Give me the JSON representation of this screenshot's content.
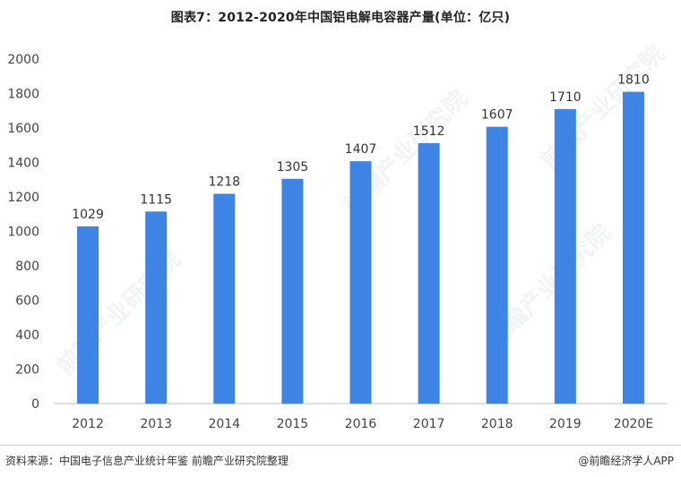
{
  "title": "图表7：2012-2020年中国铝电解电容器产量(单位：亿只)",
  "source": "资料来源：中国电子信息产业统计年鉴 前瞻产业研究院整理",
  "brand": "@前瞻经济学人APP",
  "watermark": "前瞻产业研究院",
  "colors": {
    "bar": "#3E84E4",
    "axis_text": "#444444",
    "baseline": "#bfbfbf"
  },
  "chart_data": {
    "type": "bar",
    "title": "图表7：2012-2020年中国铝电解电容器产量(单位：亿只)",
    "categories": [
      "2012",
      "2013",
      "2014",
      "2015",
      "2016",
      "2017",
      "2018",
      "2019",
      "2020E"
    ],
    "values": [
      1029,
      1115,
      1218,
      1305,
      1407,
      1512,
      1607,
      1710,
      1810
    ],
    "xlabel": "",
    "ylabel": "",
    "ylim": [
      0,
      2000
    ],
    "yticks": [
      0,
      200,
      400,
      600,
      800,
      1000,
      1200,
      1400,
      1600,
      1800,
      2000
    ],
    "grid": false,
    "data_labels": true
  }
}
